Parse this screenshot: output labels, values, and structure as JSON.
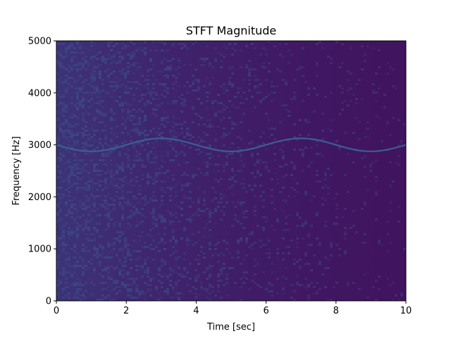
{
  "chart_data": {
    "type": "heatmap",
    "title": "STFT Magnitude",
    "xlabel": "Time [sec]",
    "ylabel": "Frequency [Hz]",
    "xlim": [
      0,
      10
    ],
    "ylim": [
      0,
      5000
    ],
    "x_ticks": [
      0,
      2,
      4,
      6,
      8,
      10
    ],
    "y_ticks": [
      0,
      1000,
      2000,
      3000,
      4000,
      5000
    ],
    "x_tick_labels": [
      "0",
      "2",
      "4",
      "6",
      "8",
      "10"
    ],
    "y_tick_labels": [
      "0",
      "1000",
      "2000",
      "3000",
      "4000",
      "5000"
    ],
    "colormap": "viridis",
    "background_color": "#41125e",
    "noise_color": "#3d5f95",
    "grid": false,
    "tone": {
      "description": "frequency-modulated sinusoid",
      "carrier_hz": 3000,
      "modulation_amplitude_hz": 125,
      "modulation_period_sec": 4,
      "color": "#3b5f93",
      "x": [
        0,
        0.5,
        1,
        1.5,
        2,
        2.5,
        3,
        3.5,
        4,
        4.5,
        5,
        5.5,
        6,
        6.5,
        7,
        7.5,
        8,
        8.5,
        9,
        9.5,
        10
      ],
      "y": [
        3000,
        2912,
        2875,
        2912,
        3000,
        3088,
        3125,
        3088,
        3000,
        2912,
        2875,
        2912,
        3000,
        3088,
        3125,
        3088,
        3000,
        2912,
        2875,
        2912,
        3000
      ]
    },
    "noise_fade": "noise brightest near t=0 and fading toward t=10"
  }
}
